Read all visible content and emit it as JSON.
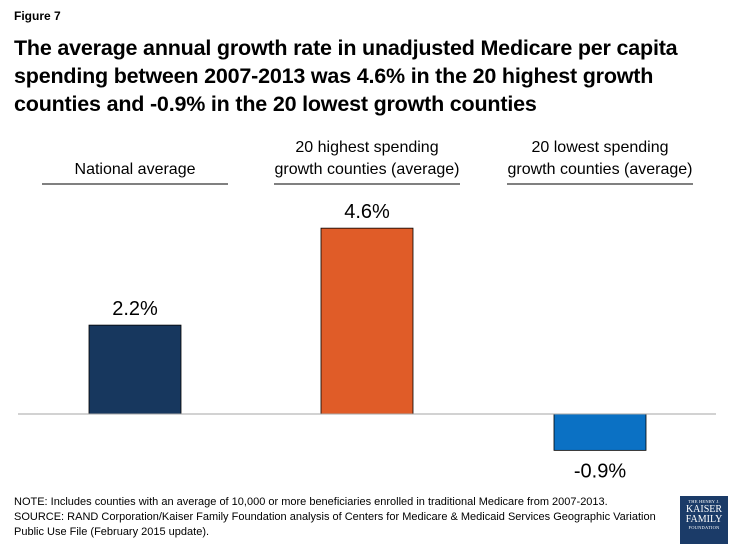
{
  "figure_label": "Figure 7",
  "chart_data": {
    "type": "bar",
    "title": "The average annual growth rate in unadjusted Medicare per capita spending between 2007-2013 was 4.6% in the 20 highest growth counties and -0.9% in the 20 lowest growth counties",
    "categories": [
      [
        "National average"
      ],
      [
        "20 highest spending",
        "growth counties (average)"
      ],
      [
        "20 lowest spending",
        "growth counties (average)"
      ]
    ],
    "values": [
      2.2,
      4.6,
      -0.9
    ],
    "value_labels": [
      "2.2%",
      "4.6%",
      "-0.9%"
    ],
    "colors": [
      "#17375e",
      "#e05c28",
      "#0b71c4"
    ],
    "ylim": [
      -1.2,
      5.0
    ],
    "xlabel": "",
    "ylabel": "",
    "grid": false
  },
  "notes": {
    "note": "NOTE: Includes counties with an average of 10,000 or more beneficiaries enrolled in traditional Medicare from 2007-2013.",
    "source_line1": "SOURCE: RAND Corporation/Kaiser Family Foundation analysis of Centers for Medicare & Medicaid Services Geographic Variation",
    "source_line2": "Public Use File (February 2015 update)."
  },
  "logo": {
    "line1": "THE HENRY J.",
    "line2": "KAISER",
    "line3": "FAMILY",
    "line4": "FOUNDATION"
  }
}
